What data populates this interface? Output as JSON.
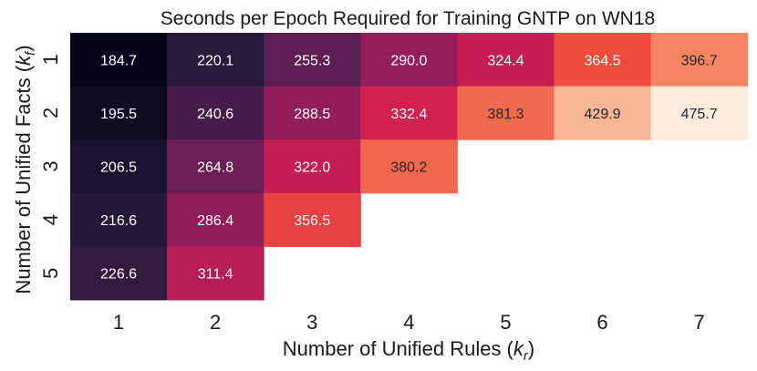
{
  "chart_data": {
    "type": "heatmap",
    "title": "Seconds per Epoch Required for Training GNTP on WN18",
    "xlabel": {
      "prefix": "Number of Unified Rules (",
      "var": "k",
      "sub": "r",
      "suffix": ")"
    },
    "ylabel": {
      "prefix": "Number of Unified Facts (",
      "var": "k",
      "sub": "f",
      "suffix": ")"
    },
    "x_ticks": [
      "1",
      "2",
      "3",
      "4",
      "5",
      "6",
      "7"
    ],
    "y_ticks": [
      "1",
      "2",
      "3",
      "4",
      "5"
    ],
    "values": [
      [
        184.7,
        220.1,
        255.3,
        290.0,
        324.4,
        364.5,
        396.7
      ],
      [
        195.5,
        240.6,
        288.5,
        332.4,
        381.3,
        429.9,
        475.7
      ],
      [
        206.5,
        264.8,
        322.0,
        380.2,
        null,
        null,
        null
      ],
      [
        216.6,
        286.4,
        356.5,
        null,
        null,
        null,
        null
      ],
      [
        226.6,
        311.4,
        null,
        null,
        null,
        null,
        null
      ]
    ],
    "value_labels": [
      [
        "184.7",
        "220.1",
        "255.3",
        "290.0",
        "324.4",
        "364.5",
        "396.7"
      ],
      [
        "195.5",
        "240.6",
        "288.5",
        "332.4",
        "381.3",
        "429.9",
        "475.7"
      ],
      [
        "206.5",
        "264.8",
        "322.0",
        "380.2",
        "",
        "",
        ""
      ],
      [
        "216.6",
        "286.4",
        "356.5",
        "",
        "",
        "",
        ""
      ],
      [
        "226.6",
        "311.4",
        "",
        "",
        "",
        "",
        ""
      ]
    ],
    "colormap": "rocket",
    "colormap_stops": [
      "#03051a",
      "#2a1a3c",
      "#5e1f52",
      "#9a1d5c",
      "#d01d50",
      "#f0503b",
      "#f6906a",
      "#f8c5a7",
      "#faebdd"
    ],
    "vmin": 184.7,
    "vmax": 475.7,
    "colorbar": false
  }
}
